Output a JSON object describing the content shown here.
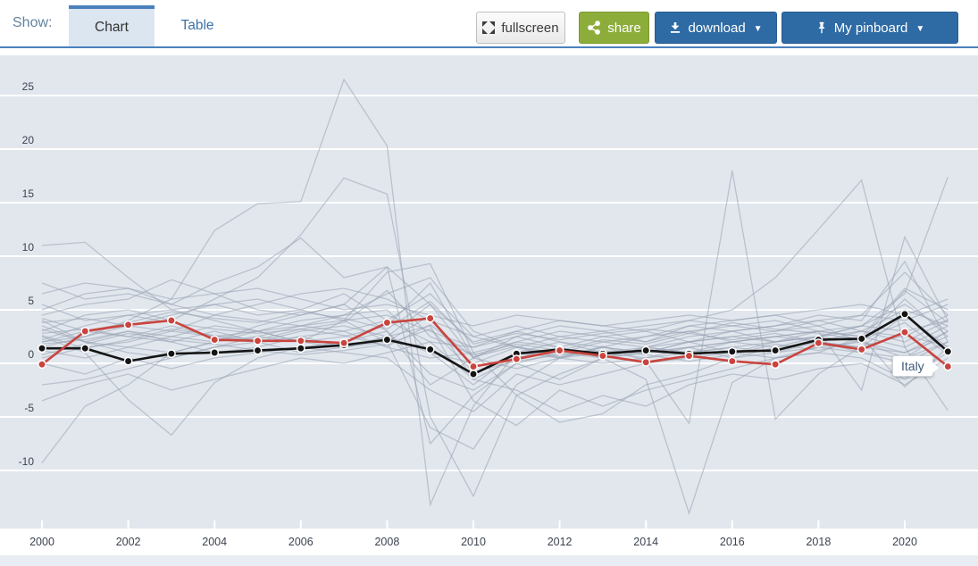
{
  "header": {
    "show_label": "Show:",
    "tabs": [
      {
        "label": "Chart",
        "active": true
      },
      {
        "label": "Table",
        "active": false
      }
    ],
    "buttons": {
      "fullscreen": "fullscreen",
      "share": "share",
      "download": "download",
      "pinboard": "My pinboard",
      "caret": "▼"
    }
  },
  "colors": {
    "tab_underline": "#4a81bd",
    "share_green": "#8cad3a",
    "button_blue": "#2e6ba4",
    "plot_background": "#e2e7ee",
    "gridline": "#ffffff",
    "gray_line": "#97a3b2",
    "italy_red": "#c9443e",
    "black_series": "#141414"
  },
  "chart_data": {
    "type": "line",
    "x": [
      2000,
      2001,
      2002,
      2003,
      2004,
      2005,
      2006,
      2007,
      2008,
      2009,
      2010,
      2011,
      2012,
      2013,
      2014,
      2015,
      2016,
      2017,
      2018,
      2019,
      2020,
      2021
    ],
    "x_tick_years": [
      2000,
      2002,
      2004,
      2006,
      2008,
      2010,
      2012,
      2014,
      2016,
      2018,
      2020
    ],
    "y_ticks": [
      25,
      20,
      15,
      10,
      5,
      0,
      -5,
      -10
    ],
    "ylim": [
      -15.4,
      28.8
    ],
    "grid": "horizontal-white-lines",
    "legend_position": "none",
    "annotation": {
      "label": "Italy",
      "year": 2021
    },
    "series": [
      {
        "id": "other-01",
        "role": "other",
        "dots": false,
        "values": [
          2.0,
          2.5,
          4.0,
          6.0,
          12.4,
          14.9,
          15.1,
          26.5,
          20.3,
          -13.2,
          -4.0,
          1.0,
          0.5,
          1.5,
          1.0,
          2.0,
          2.5,
          3.0,
          3.5,
          2.0,
          1.0,
          3.0
        ]
      },
      {
        "id": "other-02",
        "role": "other",
        "dots": false,
        "values": [
          3.0,
          4.5,
          5.0,
          4.0,
          6.0,
          8.0,
          12.0,
          17.3,
          15.8,
          -5.0,
          -12.4,
          -3.0,
          -1.0,
          0.5,
          1.0,
          1.5,
          2.0,
          2.5,
          3.0,
          2.5,
          -2.2,
          1.5
        ]
      },
      {
        "id": "other-03",
        "role": "other",
        "dots": false,
        "values": [
          5.0,
          6.5,
          7.0,
          5.5,
          7.5,
          9.0,
          11.7,
          8.0,
          9.0,
          -7.5,
          -3.0,
          0.0,
          -1.5,
          0.5,
          1.5,
          2.0,
          2.5,
          2.0,
          2.5,
          3.0,
          2.0,
          4.0
        ]
      },
      {
        "id": "other-04",
        "role": "other",
        "dots": false,
        "values": [
          4.0,
          2.0,
          3.0,
          2.5,
          2.0,
          3.5,
          4.5,
          5.5,
          3.0,
          -2.0,
          0.5,
          2.5,
          1.5,
          0.5,
          -1.5,
          -14.0,
          -1.8,
          0.5,
          1.0,
          2.5,
          1.5,
          3.5
        ]
      },
      {
        "id": "other-05",
        "role": "other",
        "dots": false,
        "values": [
          2.6,
          1.4,
          2.2,
          3.2,
          2.6,
          2.2,
          3.2,
          2.6,
          1.6,
          3.6,
          0.6,
          1.6,
          0.6,
          1.6,
          0.2,
          -5.6,
          18.0,
          -5.2,
          -1.0,
          1.6,
          2.6,
          1.6
        ]
      },
      {
        "id": "other-06",
        "role": "other",
        "dots": false,
        "values": [
          11.0,
          11.3,
          8.0,
          5.0,
          4.0,
          3.0,
          3.5,
          4.5,
          5.0,
          1.0,
          -2.0,
          1.0,
          2.0,
          1.5,
          1.0,
          2.0,
          3.0,
          3.5,
          4.0,
          3.0,
          2.5,
          4.5
        ]
      },
      {
        "id": "other-07",
        "role": "other",
        "dots": false,
        "values": [
          -9.3,
          -4.0,
          -2.0,
          1.0,
          2.0,
          3.0,
          2.0,
          4.0,
          8.5,
          9.3,
          1.0,
          -3.0,
          -5.5,
          -4.7,
          -2.0,
          -1.0,
          0.5,
          1.5,
          2.0,
          1.0,
          0.0,
          2.0
        ]
      },
      {
        "id": "other-08",
        "role": "other",
        "dots": false,
        "values": [
          2.5,
          1.0,
          -3.4,
          -6.7,
          -1.8,
          0.5,
          1.5,
          2.0,
          3.0,
          -1.0,
          -2.5,
          0.0,
          1.0,
          0.5,
          1.5,
          1.0,
          2.0,
          2.5,
          2.0,
          1.5,
          1.0,
          2.5
        ]
      },
      {
        "id": "other-09",
        "role": "other",
        "dots": false,
        "values": [
          3.5,
          2.0,
          1.0,
          0.5,
          1.5,
          2.5,
          3.5,
          4.0,
          2.0,
          -6.0,
          -8.0,
          -2.0,
          0.5,
          1.0,
          0.5,
          1.5,
          2.0,
          1.5,
          2.5,
          2.0,
          0.5,
          3.0
        ]
      },
      {
        "id": "other-10",
        "role": "other",
        "dots": false,
        "values": [
          1.5,
          2.5,
          3.5,
          4.5,
          5.5,
          4.5,
          5.0,
          6.5,
          4.0,
          2.0,
          1.5,
          3.0,
          4.0,
          3.5,
          3.0,
          4.0,
          5.0,
          8.0,
          12.5,
          17.1,
          1.5,
          -4.4
        ]
      },
      {
        "id": "other-11",
        "role": "other",
        "dots": false,
        "values": [
          2.0,
          3.0,
          2.5,
          2.0,
          3.0,
          2.0,
          2.5,
          3.0,
          1.5,
          0.5,
          1.0,
          2.0,
          1.5,
          2.5,
          2.0,
          3.0,
          2.0,
          2.5,
          3.0,
          -2.5,
          11.8,
          4.0
        ]
      },
      {
        "id": "other-12",
        "role": "other",
        "dots": false,
        "values": [
          0.5,
          1.5,
          2.0,
          3.0,
          2.5,
          2.0,
          3.0,
          3.5,
          2.5,
          1.0,
          0.0,
          1.5,
          1.0,
          2.0,
          1.5,
          1.0,
          1.5,
          2.0,
          2.5,
          3.5,
          6.5,
          17.4
        ]
      },
      {
        "id": "other-13",
        "role": "other",
        "dots": false,
        "values": [
          4.5,
          5.5,
          6.0,
          7.8,
          6.5,
          5.0,
          4.5,
          5.5,
          9.0,
          5.5,
          2.0,
          3.0,
          2.0,
          1.0,
          1.5,
          2.5,
          3.0,
          2.0,
          2.5,
          3.5,
          5.5,
          3.0
        ]
      },
      {
        "id": "other-14",
        "role": "other",
        "dots": false,
        "values": [
          3.8,
          4.2,
          3.5,
          3.0,
          4.5,
          4.0,
          3.5,
          3.0,
          4.0,
          6.5,
          2.5,
          1.5,
          2.5,
          3.0,
          2.0,
          3.5,
          4.0,
          4.5,
          3.5,
          4.5,
          8.5,
          4.5
        ]
      },
      {
        "id": "other-15",
        "role": "other",
        "dots": false,
        "values": [
          2.8,
          3.2,
          2.5,
          3.5,
          2.5,
          3.0,
          2.0,
          2.5,
          3.5,
          7.5,
          0.5,
          2.0,
          3.0,
          2.5,
          3.0,
          2.0,
          1.0,
          2.0,
          3.0,
          2.5,
          7.0,
          5.0
        ]
      },
      {
        "id": "other-16",
        "role": "other",
        "dots": false,
        "values": [
          1.8,
          2.2,
          3.0,
          2.0,
          1.0,
          1.5,
          2.5,
          1.5,
          2.0,
          4.5,
          -1.5,
          0.5,
          1.5,
          0.5,
          1.0,
          1.5,
          0.5,
          1.0,
          1.5,
          2.0,
          6.0,
          2.5
        ]
      },
      {
        "id": "other-17",
        "role": "other",
        "dots": false,
        "values": [
          5.5,
          4.0,
          4.5,
          5.0,
          5.5,
          6.0,
          5.0,
          4.0,
          4.5,
          3.0,
          1.5,
          2.5,
          3.5,
          3.0,
          3.5,
          4.0,
          3.5,
          3.0,
          4.0,
          4.5,
          4.0,
          5.5
        ]
      },
      {
        "id": "other-18",
        "role": "other",
        "dots": false,
        "values": [
          0.0,
          -1.0,
          0.5,
          -0.5,
          0.5,
          1.0,
          1.5,
          1.0,
          0.5,
          -2.5,
          -4.5,
          -1.0,
          -2.0,
          -1.0,
          0.0,
          0.5,
          1.0,
          0.5,
          1.0,
          0.5,
          -1.5,
          1.0
        ]
      },
      {
        "id": "other-19",
        "role": "other",
        "dots": false,
        "values": [
          -2.0,
          -1.5,
          -0.5,
          0.5,
          1.5,
          2.0,
          1.0,
          1.5,
          2.5,
          3.5,
          -3.5,
          -5.8,
          -2.5,
          -4.0,
          -2.5,
          -1.5,
          -0.5,
          0.5,
          1.5,
          1.0,
          0.5,
          2.0
        ]
      },
      {
        "id": "other-20",
        "role": "other",
        "dots": false,
        "values": [
          7.5,
          6.0,
          6.5,
          5.5,
          4.5,
          5.5,
          6.5,
          7.0,
          6.0,
          4.0,
          2.5,
          3.5,
          2.5,
          2.0,
          2.5,
          3.0,
          3.5,
          4.0,
          3.0,
          3.5,
          3.0,
          4.0
        ]
      },
      {
        "id": "other-21",
        "role": "other",
        "dots": false,
        "values": [
          3.2,
          2.0,
          1.5,
          2.5,
          3.5,
          3.0,
          4.0,
          4.5,
          6.5,
          8.0,
          3.0,
          1.5,
          0.5,
          1.5,
          2.5,
          3.5,
          3.0,
          3.5,
          4.5,
          4.0,
          9.5,
          2.0
        ]
      },
      {
        "id": "other-22",
        "role": "other",
        "dots": false,
        "values": [
          1.2,
          0.5,
          1.5,
          1.0,
          2.0,
          2.5,
          2.0,
          1.5,
          2.5,
          5.5,
          0.5,
          -0.5,
          0.5,
          0.0,
          0.5,
          1.0,
          1.5,
          1.0,
          2.0,
          1.5,
          4.5,
          1.5
        ]
      },
      {
        "id": "other-23",
        "role": "other",
        "dots": false,
        "values": [
          -3.5,
          -2.0,
          -1.0,
          -2.5,
          -1.5,
          -0.5,
          0.5,
          0.0,
          1.0,
          2.0,
          -1.5,
          -2.5,
          -4.5,
          -3.0,
          -4.0,
          -2.0,
          -1.0,
          -1.5,
          -0.5,
          0.0,
          -2.0,
          0.5
        ]
      },
      {
        "id": "other-24",
        "role": "other",
        "dots": false,
        "values": [
          6.5,
          7.5,
          7.0,
          6.0,
          6.5,
          7.0,
          6.0,
          5.0,
          5.5,
          4.5,
          3.5,
          4.5,
          4.0,
          3.5,
          4.0,
          4.5,
          4.0,
          4.5,
          5.0,
          5.5,
          4.5,
          6.0
        ]
      },
      {
        "id": "other-25",
        "role": "other",
        "dots": false,
        "values": [
          2.2,
          3.5,
          4.5,
          3.8,
          3.2,
          2.8,
          3.2,
          3.8,
          6.8,
          2.5,
          0.8,
          1.8,
          1.2,
          2.2,
          1.8,
          2.8,
          2.2,
          2.8,
          2.0,
          3.0,
          5.0,
          3.5
        ]
      },
      {
        "id": "other-26",
        "role": "other",
        "dots": false,
        "values": [
          0.8,
          1.8,
          2.8,
          2.2,
          1.8,
          1.2,
          0.8,
          1.2,
          1.8,
          3.2,
          -0.8,
          0.2,
          0.8,
          1.2,
          0.8,
          0.2,
          0.8,
          1.8,
          1.2,
          2.2,
          3.8,
          0.8
        ]
      },
      {
        "id": "other-27",
        "role": "other",
        "dots": false,
        "values": [
          4.2,
          3.0,
          3.8,
          4.8,
          4.2,
          3.8,
          4.8,
          4.2,
          3.2,
          5.8,
          1.8,
          2.8,
          2.2,
          2.8,
          3.2,
          2.8,
          3.8,
          3.2,
          2.8,
          2.2,
          6.8,
          3.8
        ]
      },
      {
        "id": "black",
        "name": "",
        "role": "highlight-secondary",
        "dots": true,
        "color": "#141414",
        "values": [
          1.4,
          1.4,
          0.2,
          0.9,
          1.0,
          1.2,
          1.4,
          1.7,
          2.2,
          1.3,
          -1.0,
          0.9,
          1.3,
          0.9,
          1.2,
          0.9,
          1.1,
          1.2,
          2.2,
          2.3,
          4.6,
          1.1
        ]
      },
      {
        "id": "italy",
        "name": "Italy",
        "role": "highlight-primary",
        "dots": true,
        "color": "#c9443e",
        "values": [
          -0.1,
          3.0,
          3.6,
          4.0,
          2.2,
          2.1,
          2.1,
          1.9,
          3.8,
          4.2,
          -0.3,
          0.4,
          1.2,
          0.7,
          0.1,
          0.7,
          0.2,
          -0.1,
          1.9,
          1.3,
          2.9,
          -0.3
        ]
      }
    ]
  }
}
